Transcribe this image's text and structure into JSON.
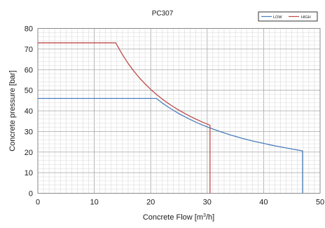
{
  "chart_data": {
    "type": "line",
    "title": "PC307",
    "xlabel": "Concrete Flow [m",
    "xlabel_sup": "3",
    "xlabel_tail": "/h]",
    "ylabel": "Concrete pressure [bar]",
    "xlim": [
      0,
      50
    ],
    "ylim": [
      0,
      80
    ],
    "xticks": [
      0,
      10,
      20,
      30,
      40,
      50
    ],
    "yticks": [
      0,
      10,
      20,
      30,
      40,
      50,
      60,
      70,
      80
    ],
    "x_minor_step": 1,
    "y_minor_step": 2,
    "grid": true,
    "legend_position": "top-right",
    "series": [
      {
        "name": "LOW",
        "color": "#4a7ebb",
        "points": [
          [
            0,
            46
          ],
          [
            21,
            46
          ],
          [
            22,
            43.9
          ],
          [
            23,
            42.0
          ],
          [
            24,
            40.3
          ],
          [
            25,
            38.6
          ],
          [
            26,
            37.2
          ],
          [
            27,
            35.8
          ],
          [
            28,
            34.5
          ],
          [
            29,
            33.3
          ],
          [
            30,
            32.2
          ],
          [
            31,
            31.2
          ],
          [
            32,
            30.2
          ],
          [
            33,
            29.3
          ],
          [
            34,
            28.4
          ],
          [
            35,
            27.6
          ],
          [
            36,
            26.8
          ],
          [
            37,
            26.1
          ],
          [
            38,
            25.4
          ],
          [
            39,
            24.8
          ],
          [
            40,
            24.2
          ],
          [
            41,
            23.6
          ],
          [
            42,
            23.0
          ],
          [
            43,
            22.5
          ],
          [
            44,
            22.0
          ],
          [
            45,
            21.5
          ],
          [
            46,
            21.0
          ],
          [
            46.9,
            20.6
          ],
          [
            46.9,
            0
          ]
        ]
      },
      {
        "name": "HIGH",
        "color": "#be4b48",
        "points": [
          [
            0,
            73
          ],
          [
            13.8,
            73
          ],
          [
            15,
            67.2
          ],
          [
            16,
            63.0
          ],
          [
            17,
            59.3
          ],
          [
            18,
            56.0
          ],
          [
            19,
            53.1
          ],
          [
            20,
            50.4
          ],
          [
            21,
            48.0
          ],
          [
            22,
            45.8
          ],
          [
            23,
            43.8
          ],
          [
            24,
            42.0
          ],
          [
            25,
            40.3
          ],
          [
            26,
            38.8
          ],
          [
            27,
            37.3
          ],
          [
            28,
            36.0
          ],
          [
            29,
            34.7
          ],
          [
            30,
            33.6
          ],
          [
            30.5,
            33.0
          ],
          [
            30.5,
            0
          ]
        ]
      }
    ]
  }
}
